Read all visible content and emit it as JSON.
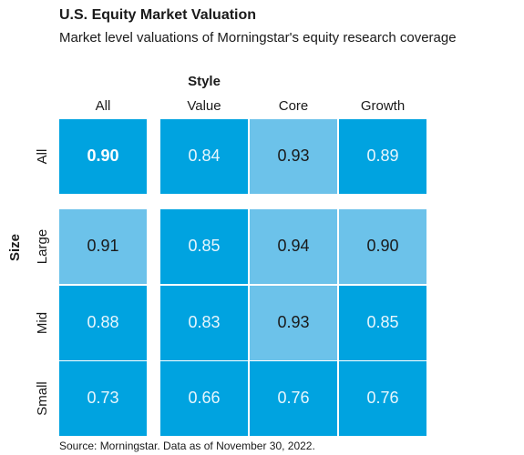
{
  "chart_data": {
    "type": "heatmap",
    "title": "U.S. Equity Market Valuation",
    "subtitle": "Market level valuations of Morningstar's equity research coverage",
    "x_label": "Style",
    "y_label": "Size",
    "x_categories": [
      "All",
      "Value",
      "Core",
      "Growth"
    ],
    "y_categories": [
      "All",
      "Large",
      "Mid",
      "Small"
    ],
    "values": [
      [
        0.9,
        0.84,
        0.93,
        0.89
      ],
      [
        0.91,
        0.85,
        0.94,
        0.9
      ],
      [
        0.88,
        0.83,
        0.93,
        0.85
      ],
      [
        0.73,
        0.66,
        0.76,
        0.76
      ]
    ],
    "value_labels": [
      [
        "0.90",
        "0.84",
        "0.93",
        "0.89"
      ],
      [
        "0.91",
        "0.85",
        "0.94",
        "0.90"
      ],
      [
        "0.88",
        "0.83",
        "0.93",
        "0.85"
      ],
      [
        "0.73",
        "0.66",
        "0.76",
        "0.76"
      ]
    ],
    "colors": [
      [
        "#00a3e0",
        "#00a3e0",
        "#6cc2ea",
        "#00a3e0"
      ],
      [
        "#6cc2ea",
        "#00a3e0",
        "#6cc2ea",
        "#6cc2ea"
      ],
      [
        "#00a3e0",
        "#00a3e0",
        "#6cc2ea",
        "#00a3e0"
      ],
      [
        "#00a3e0",
        "#00a3e0",
        "#00a3e0",
        "#00a3e0"
      ]
    ],
    "source": "Source: Morningstar. Data as of November 30, 2022."
  }
}
